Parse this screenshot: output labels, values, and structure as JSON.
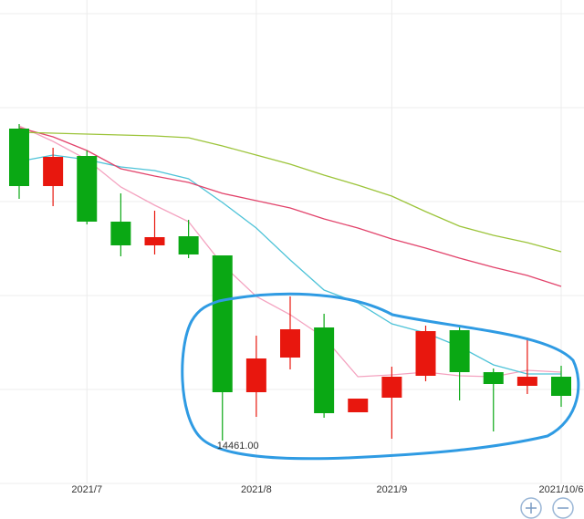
{
  "chart_data": {
    "type": "candlestick",
    "categories": [
      null,
      null,
      "2021/7",
      null,
      null,
      null,
      null,
      "2021/8",
      null,
      null,
      null,
      "2021/9",
      null,
      null,
      null,
      null,
      "2021/10/6"
    ],
    "open": [
      17881,
      17251,
      17581,
      16861,
      16601,
      16701,
      16491,
      14991,
      15371,
      15701,
      14771,
      14931,
      15171,
      15671,
      15211,
      15061,
      15161
    ],
    "high": [
      17931,
      17671,
      17641,
      17171,
      16981,
      16881,
      16491,
      15611,
      16041,
      15851,
      14921,
      15271,
      15721,
      15721,
      15251,
      15591,
      15281
    ],
    "low": [
      17111,
      17031,
      16831,
      16481,
      16501,
      16461,
      14461,
      14721,
      15241,
      14711,
      14771,
      14481,
      15111,
      14901,
      14561,
      14971,
      14831
    ],
    "close": [
      17251,
      17571,
      16861,
      16601,
      16691,
      16501,
      14991,
      15361,
      15681,
      14761,
      14921,
      15161,
      15661,
      15211,
      15081,
      15161,
      14951
    ],
    "up_color": "#e8170e",
    "down_color": "#0aa814",
    "min_label": "14461.00",
    "series": [
      {
        "color": "#f4a3c0",
        "values": [
          17911,
          17741,
          17541,
          17241,
          17041,
          16861,
          16391,
          16041,
          15841,
          15591,
          15161,
          15181,
          15211,
          15171,
          15161,
          15231,
          15211
        ]
      },
      {
        "color": "#4ec3d8",
        "values": [
          17521,
          17591,
          17541,
          17461,
          17421,
          17331,
          17071,
          16791,
          16441,
          16111,
          15971,
          15741,
          15641,
          15491,
          15291,
          15191,
          15191
        ]
      },
      {
        "color": "#e2436b",
        "values": [
          17891,
          17791,
          17641,
          17441,
          17361,
          17291,
          17171,
          17091,
          17011,
          16891,
          16791,
          16671,
          16571,
          16461,
          16361,
          16271,
          16151
        ]
      },
      {
        "color": "#9cc43a",
        "values": [
          17841,
          17831,
          17821,
          17811,
          17801,
          17781,
          17691,
          17591,
          17491,
          17371,
          17261,
          17141,
          16971,
          16811,
          16711,
          16631,
          16531
        ]
      }
    ],
    "ylim": [
      13991,
      19291
    ],
    "yticks": [
      19141,
      18111,
      17081,
      16051,
      15021,
      13991
    ],
    "grid": true
  }
}
